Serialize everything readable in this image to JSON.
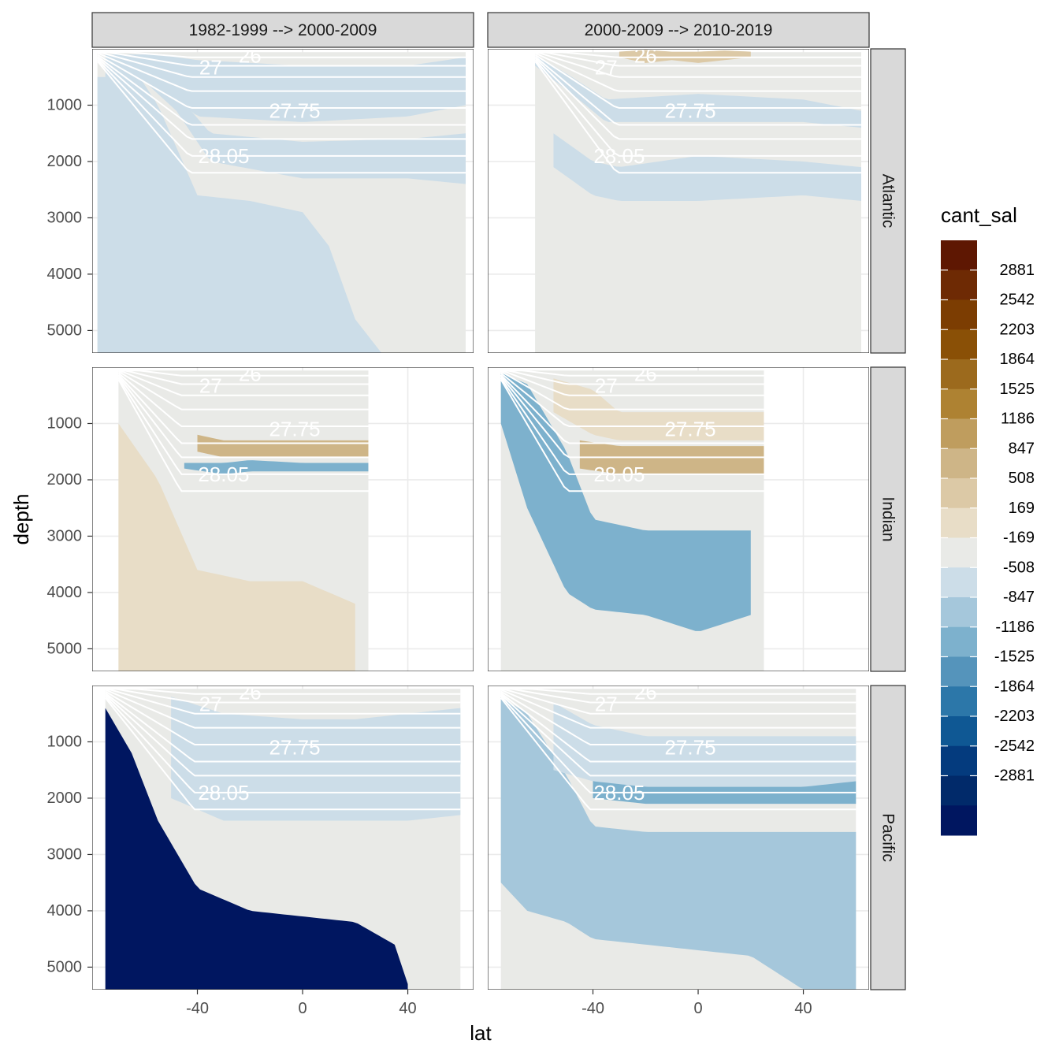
{
  "chart_data": {
    "type": "heatmap",
    "fill_variable": "cant_sal",
    "xlabel": "lat",
    "ylabel": "depth",
    "xlim": [
      -80,
      65
    ],
    "ylim": [
      5400,
      0
    ],
    "y_reversed": true,
    "grid": true,
    "legend_position": "right",
    "columns": [
      "1982-1999 --> 2000-2009",
      "2000-2009 --> 2010-2019"
    ],
    "rows": [
      "Atlantic",
      "Indian",
      "Pacific"
    ],
    "x_ticks": [
      -40,
      0,
      40
    ],
    "y_ticks": [
      1000,
      2000,
      3000,
      4000,
      5000
    ],
    "legend": {
      "title": "cant_sal",
      "breaks": [
        2881,
        2542,
        2203,
        1864,
        1525,
        1186,
        847,
        508,
        169,
        -169,
        -508,
        -847,
        -1186,
        -1525,
        -1864,
        -2203,
        -2542,
        -2881
      ],
      "colors": [
        "#5e1702",
        "#6e2a04",
        "#7c3d02",
        "#8a5006",
        "#9c6a1d",
        "#ae8232",
        "#bf9d5e",
        "#ceb587",
        "#dcc9a6",
        "#e8ddc7",
        "#e9eae7",
        "#ccdde8",
        "#a5c7db",
        "#7db1cd",
        "#5594bb",
        "#2c77a9",
        "#0f5894",
        "#043b7e",
        "#012a6a",
        "#001660"
      ]
    },
    "isopycnal_labels": [
      "26",
      "27",
      "27.75",
      "28.05"
    ],
    "panels": [
      {
        "row": "Atlantic",
        "column": "1982-1999 --> 2000-2009",
        "bands": [
          {
            "lat": [
              -75,
              -55,
              -40,
              0,
              40,
              62
            ],
            "top_depth": [
              100,
              100,
              200,
              300,
              300,
              150
            ],
            "bottom_depth": [
              500,
              600,
              1200,
              1300,
              1200,
              1000
            ],
            "value": -300
          },
          {
            "lat": [
              -62,
              -48,
              -35,
              0,
              40,
              62
            ],
            "top_depth": [
              300,
              800,
              1500,
              1650,
              1600,
              1500
            ],
            "bottom_depth": [
              500,
              1100,
              2000,
              2300,
              2300,
              2400
            ],
            "value": -300
          },
          {
            "lat": [
              -78,
              -62,
              -55,
              -40,
              -20,
              0,
              10,
              20,
              30
            ],
            "top_depth": [
              500,
              500,
              1000,
              2600,
              2700,
              2900,
              3500,
              4800,
              5400
            ],
            "bottom_depth": [
              5400,
              5400,
              5400,
              5400,
              5400,
              5400,
              5400,
              5400,
              5400
            ],
            "value": -300
          }
        ]
      },
      {
        "row": "Atlantic",
        "column": "2000-2009 --> 2010-2019",
        "bands": [
          {
            "lat": [
              -30,
              -20,
              -10,
              0,
              10,
              20
            ],
            "top_depth": [
              50,
              20,
              50,
              50,
              30,
              50
            ],
            "bottom_depth": [
              150,
              250,
              200,
              250,
              200,
              150
            ],
            "value": 600
          },
          {
            "lat": [
              -62,
              -48,
              -35,
              0,
              40,
              62
            ],
            "top_depth": [
              100,
              500,
              900,
              800,
              900,
              1100
            ],
            "bottom_depth": [
              300,
              800,
              1300,
              1300,
              1300,
              1400
            ],
            "value": -300
          },
          {
            "lat": [
              -55,
              -40,
              -30,
              0,
              40,
              62
            ],
            "top_depth": [
              1500,
              2000,
              2100,
              1900,
              2000,
              2100
            ],
            "bottom_depth": [
              2100,
              2600,
              2700,
              2700,
              2600,
              2700
            ],
            "value": -300
          }
        ]
      },
      {
        "row": "Indian",
        "column": "1982-1999 --> 2000-2009",
        "bands": [
          {
            "lat": [
              -70,
              -55,
              -40,
              -20,
              0,
              20
            ],
            "top_depth": [
              1000,
              2000,
              3600,
              3800,
              3800,
              4200
            ],
            "bottom_depth": [
              5400,
              5400,
              5400,
              5400,
              5400,
              5400
            ],
            "value": 400
          },
          {
            "lat": [
              -40,
              -30,
              -20,
              0,
              20,
              25
            ],
            "top_depth": [
              1200,
              1300,
              1300,
              1300,
              1300,
              1300
            ],
            "bottom_depth": [
              1500,
              1600,
              1600,
              1600,
              1600,
              1600
            ],
            "value": 1000
          },
          {
            "lat": [
              -45,
              -30,
              -20,
              0,
              20,
              25
            ],
            "top_depth": [
              1700,
              1700,
              1650,
              1700,
              1700,
              1700
            ],
            "bottom_depth": [
              1800,
              1900,
              1850,
              1850,
              1850,
              1850
            ],
            "value": -900
          }
        ]
      },
      {
        "row": "Indian",
        "column": "2000-2009 --> 2010-2019",
        "bands": [
          {
            "lat": [
              -75,
              -65,
              -50,
              -40,
              -20,
              0,
              20
            ],
            "top_depth": [
              100,
              300,
              1500,
              2700,
              2900,
              2900,
              2900
            ],
            "bottom_depth": [
              1000,
              2500,
              4000,
              4300,
              4400,
              4700,
              4400
            ],
            "value": -1000
          },
          {
            "lat": [
              -45,
              -30,
              -20,
              0,
              20,
              25
            ],
            "top_depth": [
              1300,
              1400,
              1400,
              1400,
              1400,
              1400
            ],
            "bottom_depth": [
              1800,
              1900,
              1900,
              1900,
              1900,
              1900
            ],
            "value": 1100
          },
          {
            "lat": [
              -55,
              -40,
              -30,
              0,
              20,
              25
            ],
            "top_depth": [
              200,
              400,
              800,
              800,
              800,
              800
            ],
            "bottom_depth": [
              800,
              1200,
              1300,
              1300,
              1300,
              1300
            ],
            "value": 500
          }
        ]
      },
      {
        "row": "Pacific",
        "column": "1982-1999 --> 2000-2009",
        "bands": [
          {
            "lat": [
              -75,
              -65,
              -55,
              -40,
              -20,
              0,
              20,
              35,
              40
            ],
            "top_depth": [
              400,
              1200,
              2400,
              3600,
              4000,
              4100,
              4200,
              4600,
              5300
            ],
            "bottom_depth": [
              5400,
              5400,
              5400,
              5400,
              5400,
              5400,
              5400,
              5400,
              5400
            ],
            "value": -2900
          },
          {
            "lat": [
              -40,
              -20,
              0,
              20,
              40,
              60
            ],
            "top_depth": [
              900,
              1100,
              1100,
              1100,
              1100,
              1100
            ],
            "bottom_depth": [
              1400,
              1500,
              1500,
              1500,
              1500,
              1400
            ],
            "value": -800
          },
          {
            "lat": [
              -50,
              -30,
              0,
              20,
              40,
              60
            ],
            "top_depth": [
              200,
              500,
              600,
              600,
              500,
              400
            ],
            "bottom_depth": [
              2000,
              2400,
              2400,
              2400,
              2400,
              2300
            ],
            "value": -300
          }
        ]
      },
      {
        "row": "Pacific",
        "column": "2000-2009 --> 2010-2019",
        "bands": [
          {
            "lat": [
              -75,
              -65,
              -50,
              -40,
              -20,
              0,
              20,
              40,
              60
            ],
            "top_depth": [
              200,
              500,
              1600,
              2500,
              2600,
              2600,
              2600,
              2600,
              2600
            ],
            "bottom_depth": [
              3500,
              4000,
              4200,
              4500,
              4600,
              4700,
              4800,
              5400,
              5400
            ],
            "value": -800
          },
          {
            "lat": [
              -40,
              -20,
              0,
              20,
              40,
              60
            ],
            "top_depth": [
              1600,
              1700,
              1700,
              1700,
              1700,
              1700
            ],
            "bottom_depth": [
              2000,
              2100,
              2100,
              2100,
              2100,
              2100
            ],
            "value": -900
          },
          {
            "lat": [
              -55,
              -40,
              -20,
              0,
              20,
              40,
              60
            ],
            "top_depth": [
              300,
              700,
              900,
              900,
              900,
              900,
              900
            ],
            "bottom_depth": [
              1500,
              1700,
              1800,
              1800,
              1800,
              1800,
              1700
            ],
            "value": -300
          }
        ]
      }
    ]
  }
}
